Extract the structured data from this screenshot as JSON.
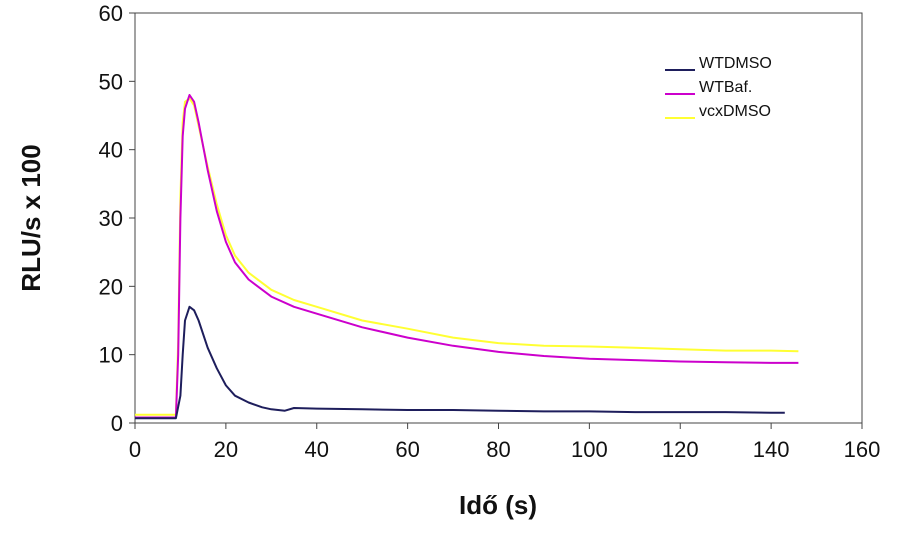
{
  "chart_data": {
    "type": "line",
    "title": "",
    "xlabel": "Idő (s)",
    "ylabel": "RLU/s x 100",
    "xlim": [
      0,
      160
    ],
    "ylim": [
      0,
      60
    ],
    "x_ticks": [
      "0",
      "20",
      "40",
      "60",
      "80",
      "100",
      "120",
      "140",
      "160"
    ],
    "y_ticks": [
      "0",
      "10",
      "20",
      "30",
      "40",
      "50",
      "60"
    ],
    "grid": false,
    "legend_position": "top-right",
    "series": [
      {
        "name": "WTDMSO",
        "color": "#1e1e5c",
        "x": [
          0,
          9,
          10,
          10.5,
          11,
          12,
          13,
          14,
          16,
          18,
          20,
          22,
          25,
          28,
          30,
          33,
          35,
          40,
          50,
          60,
          70,
          80,
          90,
          100,
          110,
          120,
          130,
          140,
          143
        ],
        "y": [
          0.7,
          0.7,
          4,
          10,
          15,
          17,
          16.5,
          15,
          11,
          8,
          5.5,
          4,
          3,
          2.3,
          2,
          1.8,
          2.2,
          2.1,
          2,
          1.9,
          1.9,
          1.8,
          1.7,
          1.7,
          1.6,
          1.6,
          1.6,
          1.5,
          1.5
        ]
      },
      {
        "name": "WTBaf.",
        "color": "#cc00cc",
        "x": [
          0,
          9,
          9.5,
          10,
          10.5,
          11,
          12,
          13,
          14,
          16,
          18,
          20,
          22,
          25,
          30,
          35,
          40,
          50,
          60,
          70,
          80,
          90,
          100,
          110,
          120,
          130,
          140,
          146
        ],
        "y": [
          0.8,
          0.8,
          10,
          30,
          42,
          46,
          48,
          47,
          44,
          37,
          31,
          26.5,
          23.5,
          21,
          18.5,
          17,
          16,
          14,
          12.5,
          11.3,
          10.4,
          9.8,
          9.4,
          9.2,
          9,
          8.9,
          8.8,
          8.8
        ]
      },
      {
        "name": "vcxDMSO",
        "color": "#ffff33",
        "x": [
          0,
          9,
          9.5,
          10,
          10.5,
          11,
          12,
          13,
          14,
          16,
          18,
          20,
          22,
          25,
          30,
          35,
          40,
          50,
          60,
          70,
          80,
          90,
          100,
          110,
          120,
          130,
          140,
          146
        ],
        "y": [
          1.2,
          1.2,
          12,
          33,
          44,
          47,
          47.5,
          46.5,
          43.5,
          37.5,
          32,
          27.5,
          24.5,
          22,
          19.5,
          18,
          17,
          15,
          13.8,
          12.5,
          11.7,
          11.3,
          11.2,
          11,
          10.8,
          10.6,
          10.6,
          10.5
        ]
      }
    ]
  }
}
